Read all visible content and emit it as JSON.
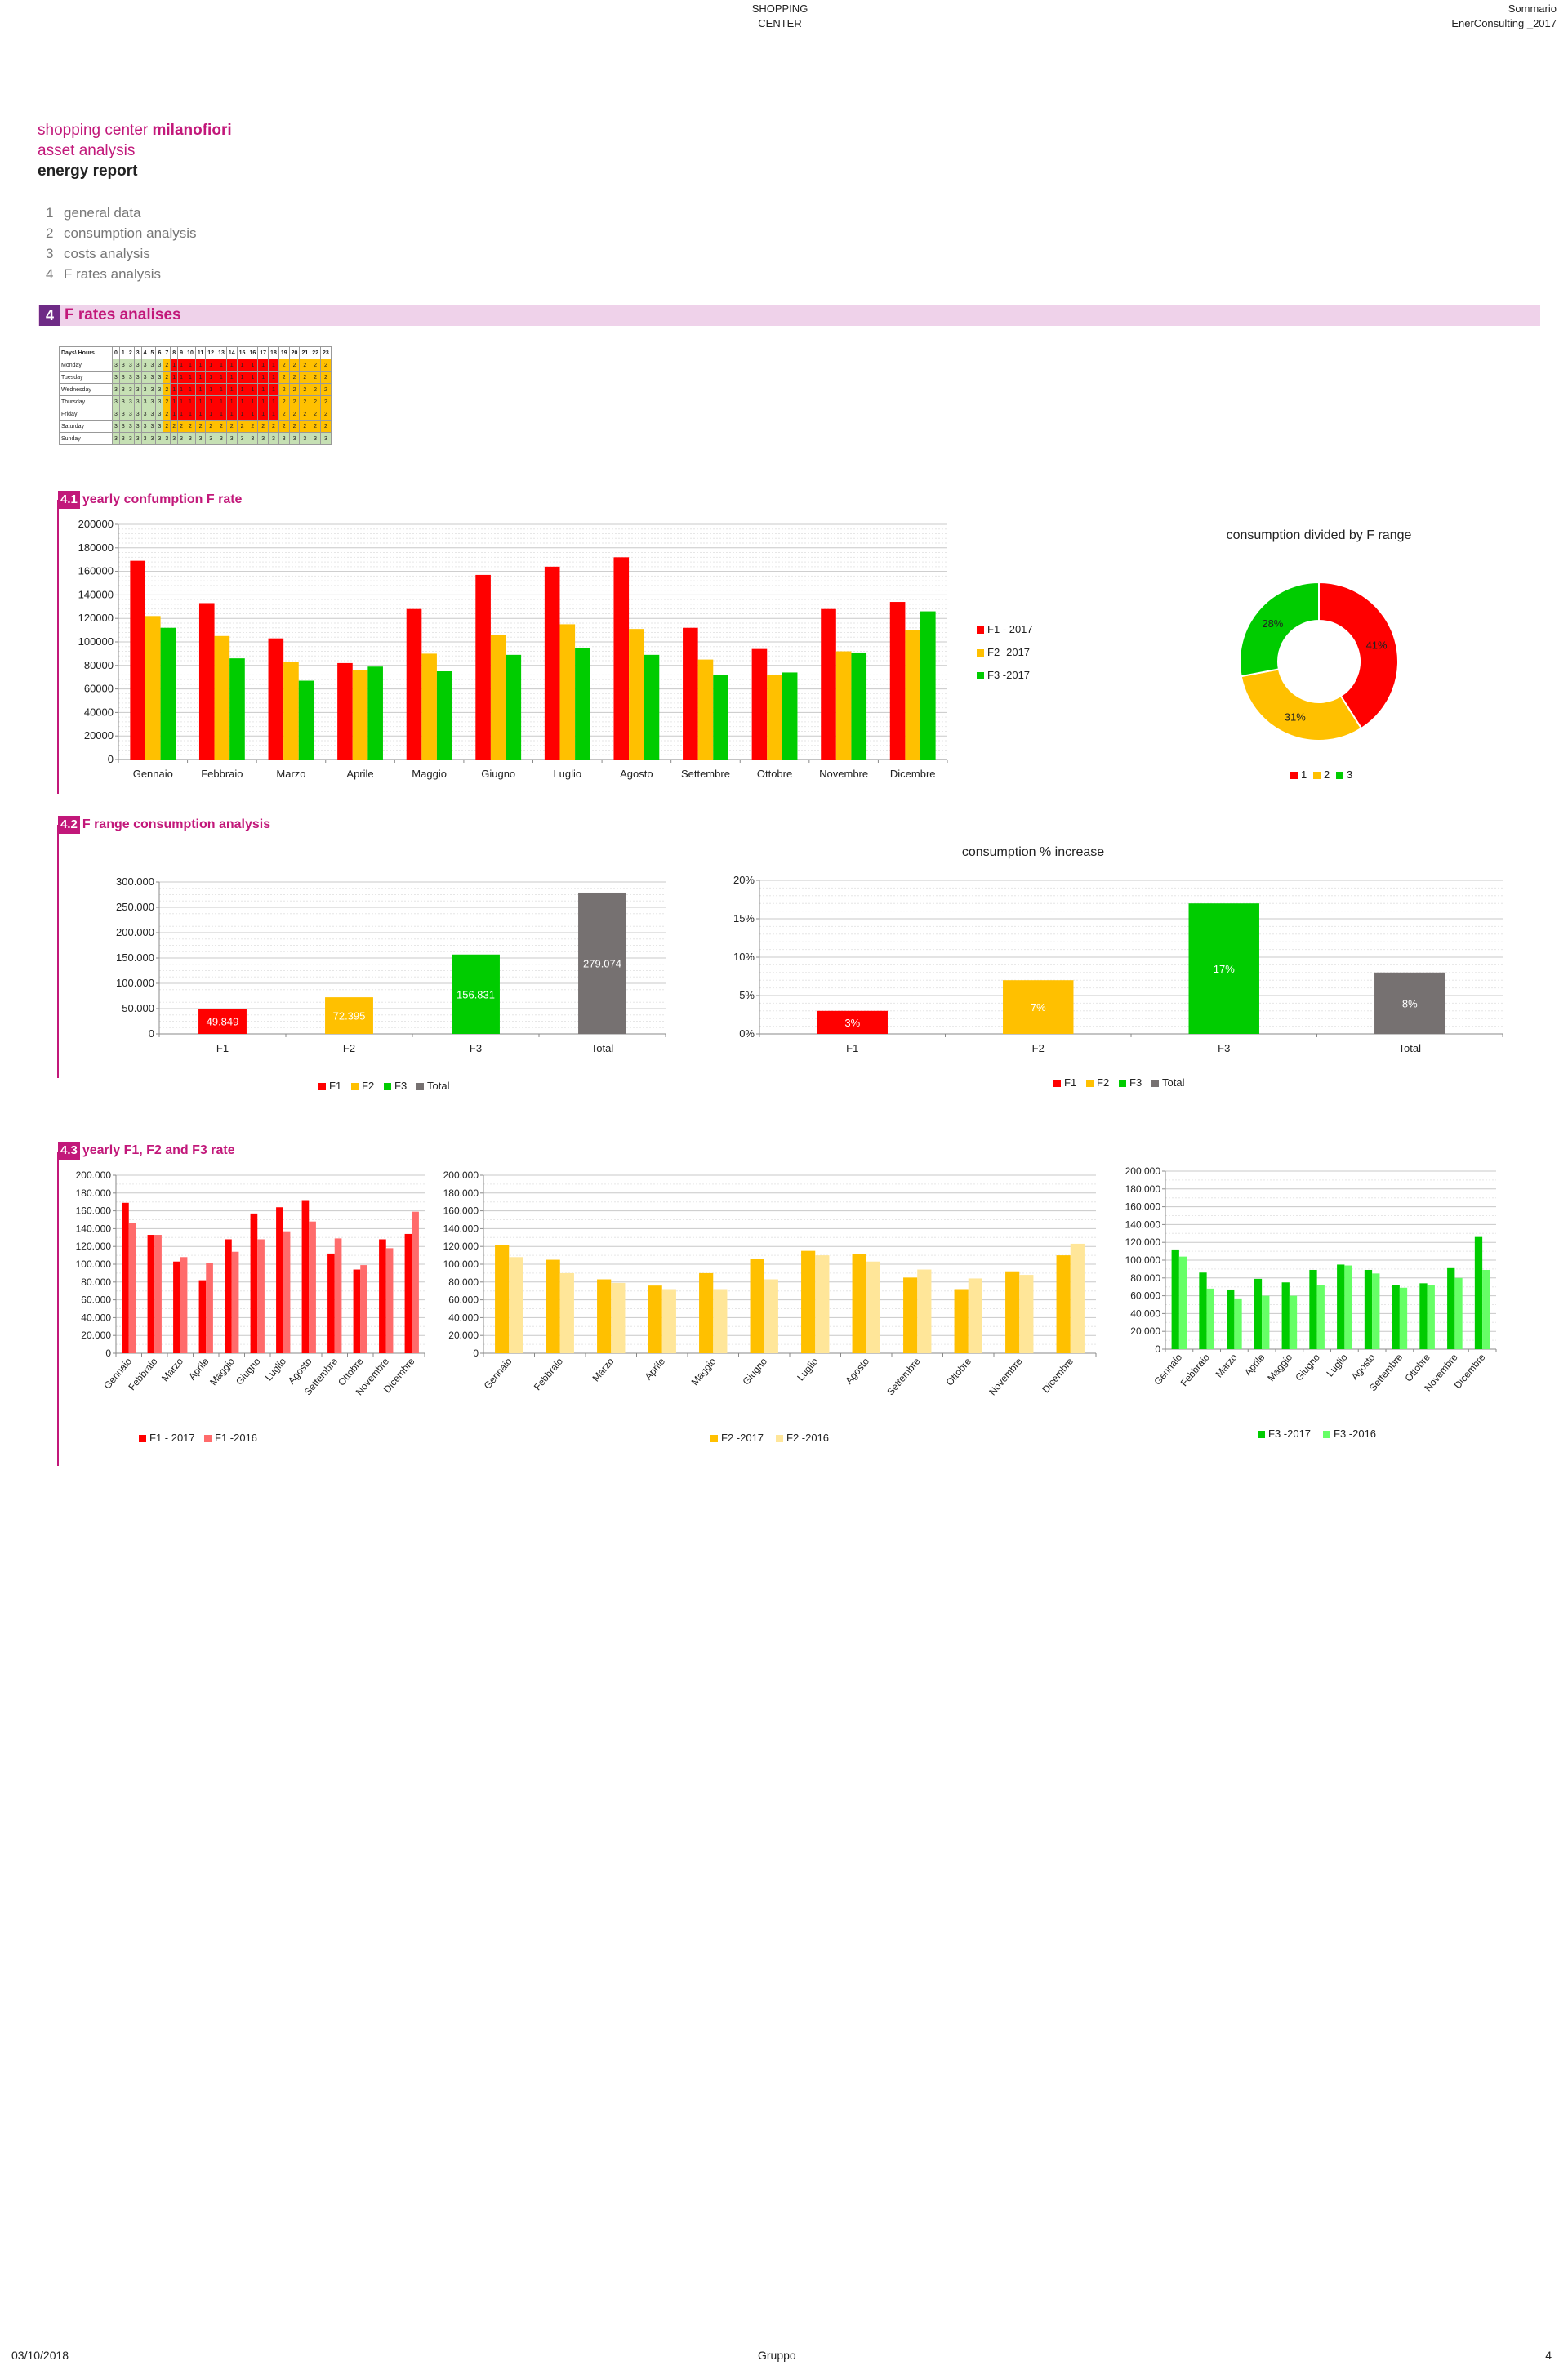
{
  "header": {
    "center_line1": "SHOPPING",
    "center_line2": "CENTER",
    "right_line1": "Sommario",
    "right_line2": "EnerConsulting _2017"
  },
  "titles": {
    "line1_prefix": "shopping center ",
    "line1_bold": "milanofiori",
    "line2": "asset analysis",
    "line3": "energy report"
  },
  "menu": [
    {
      "num": "1",
      "label": "general data"
    },
    {
      "num": "2",
      "label": "consumption analysis"
    },
    {
      "num": "3",
      "label": "costs analysis"
    },
    {
      "num": "4",
      "label": "F rates analysis"
    }
  ],
  "section": {
    "num": "4",
    "title": "F rates analises"
  },
  "colors": {
    "f1": "#ff0000",
    "f2": "#ffc000",
    "f3": "#00cc00",
    "total": "#767171",
    "f1_2016": "#ff6b6b",
    "f2_2016": "#ffe699",
    "f3_2016": "#66ff66",
    "band": "#efd2ea",
    "accent": "#c2187a",
    "section_num": "#6e2b86"
  },
  "schedule": {
    "header_label": "Days\\ Hours",
    "hours": [
      "0",
      "1",
      "2",
      "3",
      "4",
      "5",
      "6",
      "7",
      "8",
      "9",
      "10",
      "11",
      "12",
      "13",
      "14",
      "15",
      "16",
      "17",
      "18",
      "19",
      "20",
      "21",
      "22",
      "23"
    ],
    "rows": [
      {
        "day": "Monday",
        "values": [
          "3",
          "3",
          "3",
          "3",
          "3",
          "3",
          "3",
          "2",
          "1",
          "1",
          "1",
          "1",
          "1",
          "1",
          "1",
          "1",
          "1",
          "1",
          "1",
          "2",
          "2",
          "2",
          "2",
          "2"
        ]
      },
      {
        "day": "Tuesday",
        "values": [
          "3",
          "3",
          "3",
          "3",
          "3",
          "3",
          "3",
          "2",
          "1",
          "1",
          "1",
          "1",
          "1",
          "1",
          "1",
          "1",
          "1",
          "1",
          "1",
          "2",
          "2",
          "2",
          "2",
          "2"
        ]
      },
      {
        "day": "Wednesday",
        "values": [
          "3",
          "3",
          "3",
          "3",
          "3",
          "3",
          "3",
          "2",
          "1",
          "1",
          "1",
          "1",
          "1",
          "1",
          "1",
          "1",
          "1",
          "1",
          "1",
          "2",
          "2",
          "2",
          "2",
          "2"
        ]
      },
      {
        "day": "Thursday",
        "values": [
          "3",
          "3",
          "3",
          "3",
          "3",
          "3",
          "3",
          "2",
          "1",
          "1",
          "1",
          "1",
          "1",
          "1",
          "1",
          "1",
          "1",
          "1",
          "1",
          "2",
          "2",
          "2",
          "2",
          "2"
        ]
      },
      {
        "day": "Friday",
        "values": [
          "3",
          "3",
          "3",
          "3",
          "3",
          "3",
          "3",
          "2",
          "1",
          "1",
          "1",
          "1",
          "1",
          "1",
          "1",
          "1",
          "1",
          "1",
          "1",
          "2",
          "2",
          "2",
          "2",
          "2"
        ]
      },
      {
        "day": "Saturday",
        "values": [
          "3",
          "3",
          "3",
          "3",
          "3",
          "3",
          "3",
          "2",
          "2",
          "2",
          "2",
          "2",
          "2",
          "2",
          "2",
          "2",
          "2",
          "2",
          "2",
          "2",
          "2",
          "2",
          "2",
          "2"
        ]
      },
      {
        "day": "Sunday",
        "values": [
          "3",
          "3",
          "3",
          "3",
          "3",
          "3",
          "3",
          "3",
          "3",
          "3",
          "3",
          "3",
          "3",
          "3",
          "3",
          "3",
          "3",
          "3",
          "3",
          "3",
          "3",
          "3",
          "3",
          "3"
        ]
      }
    ]
  },
  "sub1": {
    "num": "4.1",
    "title": "yearly confumption F rate"
  },
  "sub2": {
    "num": "4.2",
    "title": "F range consumption analysis"
  },
  "sub3": {
    "num": "4.3",
    "title": "yearly F1, F2 and F3 rate"
  },
  "chart_data": [
    {
      "type": "bar",
      "categories": [
        "Gennaio",
        "Febbraio",
        "Marzo",
        "Aprile",
        "Maggio",
        "Giugno",
        "Luglio",
        "Agosto",
        "Settembre",
        "Ottobre",
        "Novembre",
        "Dicembre"
      ],
      "series": [
        {
          "name": "F1 - 2017",
          "values": [
            169000,
            133000,
            103000,
            82000,
            128000,
            157000,
            164000,
            172000,
            112000,
            94000,
            128000,
            134000
          ]
        },
        {
          "name": "F2 -2017",
          "values": [
            122000,
            105000,
            83000,
            76000,
            90000,
            106000,
            115000,
            111000,
            85000,
            72000,
            92000,
            110000
          ]
        },
        {
          "name": "F3 -2017",
          "values": [
            112000,
            86000,
            67000,
            79000,
            75000,
            89000,
            95000,
            89000,
            72000,
            74000,
            91000,
            126000
          ]
        }
      ],
      "yticks": [
        "200000",
        "180000",
        "160000",
        "140000",
        "120000",
        "100000",
        "80000",
        "60000",
        "40000",
        "20000",
        "0"
      ],
      "ylim": [
        0,
        200000
      ],
      "grid": true,
      "legend": "right"
    },
    {
      "type": "pie",
      "title": "consumption divided by F range",
      "categories": [
        "1",
        "2",
        "3"
      ],
      "values": [
        41,
        31,
        28
      ],
      "labels": [
        "41%",
        "31%",
        "28%"
      ],
      "legend": "bottom"
    },
    {
      "type": "bar",
      "categories": [
        "F1",
        "F2",
        "F3",
        "Total"
      ],
      "values": [
        49849,
        72395,
        156831,
        279074
      ],
      "labels": [
        "49.849",
        "72.395",
        "156.831",
        "279.074"
      ],
      "yticks": [
        "300.000",
        "250.000",
        "200.000",
        "150.000",
        "100.000",
        "50.000",
        "0"
      ],
      "ylim": [
        0,
        300000
      ],
      "legend": "bottom",
      "legend_labels": [
        "F1",
        "F2",
        "F3",
        "Total"
      ]
    },
    {
      "type": "bar",
      "title": "consumption %  increase",
      "categories": [
        "F1",
        "F2",
        "F3",
        "Total"
      ],
      "values": [
        3,
        7,
        17,
        8
      ],
      "labels": [
        "3%",
        "7%",
        "17%",
        "8%"
      ],
      "yticks": [
        "20%",
        "15%",
        "10%",
        "5%",
        "0%"
      ],
      "ylim": [
        0,
        20
      ],
      "legend": "bottom",
      "legend_labels": [
        "F1",
        "F2",
        "F3",
        "Total"
      ]
    },
    {
      "type": "bar",
      "categories": [
        "Gennaio",
        "Febbraio",
        "Marzo",
        "Aprile",
        "Maggio",
        "Giugno",
        "Luglio",
        "Agosto",
        "Settembre",
        "Ottobre",
        "Novembre",
        "Dicembre"
      ],
      "series": [
        {
          "name": "F1 - 2017",
          "values": [
            169000,
            133000,
            103000,
            82000,
            128000,
            157000,
            164000,
            172000,
            112000,
            94000,
            128000,
            134000
          ]
        },
        {
          "name": "F1 -2016",
          "values": [
            146000,
            133000,
            108000,
            101000,
            114000,
            128000,
            137000,
            148000,
            129000,
            99000,
            118000,
            159000
          ]
        }
      ],
      "yticks": [
        "200.000",
        "180.000",
        "160.000",
        "140.000",
        "120.000",
        "100.000",
        "80.000",
        "60.000",
        "40.000",
        "20.000",
        "0"
      ],
      "ylim": [
        0,
        200000
      ],
      "legend": "bottom"
    },
    {
      "type": "bar",
      "categories": [
        "Gennaio",
        "Febbraio",
        "Marzo",
        "Aprile",
        "Maggio",
        "Giugno",
        "Luglio",
        "Agosto",
        "Settembre",
        "Ottobre",
        "Novembre",
        "Dicembre"
      ],
      "series": [
        {
          "name": "F2 -2017",
          "values": [
            122000,
            105000,
            83000,
            76000,
            90000,
            106000,
            115000,
            111000,
            85000,
            72000,
            92000,
            110000
          ]
        },
        {
          "name": "F2 -2016",
          "values": [
            108000,
            90000,
            79000,
            72000,
            72000,
            83000,
            110000,
            103000,
            94000,
            84000,
            88000,
            123000
          ]
        }
      ],
      "yticks": [
        "200.000",
        "180.000",
        "160.000",
        "140.000",
        "120.000",
        "100.000",
        "80.000",
        "60.000",
        "40.000",
        "20.000",
        "0"
      ],
      "ylim": [
        0,
        200000
      ],
      "legend": "bottom"
    },
    {
      "type": "bar",
      "categories": [
        "Gennaio",
        "Febbraio",
        "Marzo",
        "Aprile",
        "Maggio",
        "Giugno",
        "Luglio",
        "Agosto",
        "Settembre",
        "Ottobre",
        "Novembre",
        "Dicembre"
      ],
      "series": [
        {
          "name": "F3 -2017",
          "values": [
            112000,
            86000,
            67000,
            79000,
            75000,
            89000,
            95000,
            89000,
            72000,
            74000,
            91000,
            126000
          ]
        },
        {
          "name": "F3 -2016",
          "values": [
            104000,
            68000,
            57000,
            60000,
            60000,
            72000,
            94000,
            85000,
            69000,
            72000,
            80000,
            89000
          ]
        }
      ],
      "yticks": [
        "200.000",
        "180.000",
        "160.000",
        "140.000",
        "120.000",
        "100.000",
        "80.000",
        "60.000",
        "40.000",
        "20.000",
        "0"
      ],
      "ylim": [
        0,
        200000
      ],
      "legend": "bottom"
    }
  ],
  "footer": {
    "date": "03/10/2018",
    "center": "Gruppo",
    "page": "4"
  }
}
